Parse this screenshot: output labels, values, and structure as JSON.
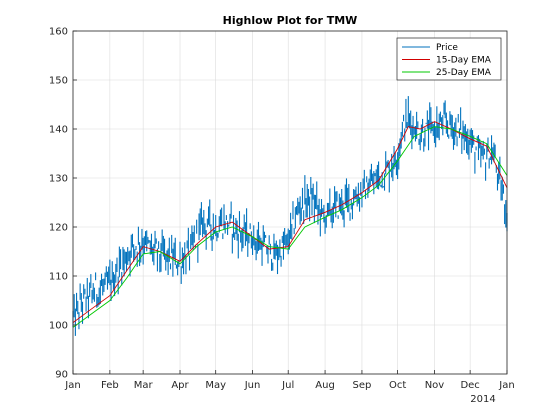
{
  "chart_data": {
    "type": "line",
    "title": "Highlow Plot for TMW",
    "xlabel": "",
    "ylabel": "",
    "xlim": [
      "2013-01-01",
      "2014-01-01"
    ],
    "ylim": [
      90,
      160
    ],
    "yticks": [
      90,
      100,
      110,
      120,
      130,
      140,
      150,
      160
    ],
    "xticks": [
      {
        "date": "2013-01-01",
        "label": "Jan"
      },
      {
        "date": "2013-02-01",
        "label": "Feb"
      },
      {
        "date": "2013-03-01",
        "label": "Mar"
      },
      {
        "date": "2013-04-01",
        "label": "Apr"
      },
      {
        "date": "2013-05-01",
        "label": "May"
      },
      {
        "date": "2013-06-01",
        "label": "Jun"
      },
      {
        "date": "2013-07-01",
        "label": "Jul"
      },
      {
        "date": "2013-08-01",
        "label": "Aug"
      },
      {
        "date": "2013-09-01",
        "label": "Sep"
      },
      {
        "date": "2013-10-01",
        "label": "Oct"
      },
      {
        "date": "2013-11-01",
        "label": "Nov"
      },
      {
        "date": "2013-12-01",
        "label": "Dec"
      },
      {
        "date": "2014-01-01",
        "label": "Jan"
      }
    ],
    "year_label": "2014",
    "grid": true,
    "legend_position": "top-right",
    "series": [
      {
        "name": "Price",
        "color": "#0072bd",
        "style": "highlow",
        "points": [
          {
            "x": "2013-01-01",
            "y": 101
          },
          {
            "x": "2013-01-10",
            "y": 105
          },
          {
            "x": "2013-01-20",
            "y": 107
          },
          {
            "x": "2013-01-31",
            "y": 108
          },
          {
            "x": "2013-02-10",
            "y": 112
          },
          {
            "x": "2013-02-20",
            "y": 116
          },
          {
            "x": "2013-03-01",
            "y": 117
          },
          {
            "x": "2013-03-10",
            "y": 115
          },
          {
            "x": "2013-03-20",
            "y": 114
          },
          {
            "x": "2013-03-31",
            "y": 113
          },
          {
            "x": "2013-04-10",
            "y": 115
          },
          {
            "x": "2013-04-20",
            "y": 121
          },
          {
            "x": "2013-05-01",
            "y": 120
          },
          {
            "x": "2013-05-10",
            "y": 121
          },
          {
            "x": "2013-05-20",
            "y": 119
          },
          {
            "x": "2013-05-31",
            "y": 118
          },
          {
            "x": "2013-06-10",
            "y": 116
          },
          {
            "x": "2013-06-20",
            "y": 114
          },
          {
            "x": "2013-07-01",
            "y": 117
          },
          {
            "x": "2013-07-10",
            "y": 124
          },
          {
            "x": "2013-07-20",
            "y": 126
          },
          {
            "x": "2013-07-31",
            "y": 122
          },
          {
            "x": "2013-08-10",
            "y": 124
          },
          {
            "x": "2013-08-20",
            "y": 125
          },
          {
            "x": "2013-08-31",
            "y": 127
          },
          {
            "x": "2013-09-10",
            "y": 129
          },
          {
            "x": "2013-09-20",
            "y": 131
          },
          {
            "x": "2013-09-30",
            "y": 134
          },
          {
            "x": "2013-10-05",
            "y": 140
          },
          {
            "x": "2013-10-10",
            "y": 142
          },
          {
            "x": "2013-10-20",
            "y": 139
          },
          {
            "x": "2013-10-31",
            "y": 140
          },
          {
            "x": "2013-11-10",
            "y": 141
          },
          {
            "x": "2013-11-20",
            "y": 140
          },
          {
            "x": "2013-11-30",
            "y": 138
          },
          {
            "x": "2013-12-10",
            "y": 134
          },
          {
            "x": "2013-12-20",
            "y": 135
          },
          {
            "x": "2013-12-25",
            "y": 130
          },
          {
            "x": "2014-01-01",
            "y": 123
          }
        ]
      },
      {
        "name": "15-Day EMA",
        "color": "#d10000",
        "style": "line",
        "points": [
          {
            "x": "2013-01-01",
            "y": 100.5
          },
          {
            "x": "2013-01-15",
            "y": 103
          },
          {
            "x": "2013-02-01",
            "y": 106
          },
          {
            "x": "2013-02-15",
            "y": 111
          },
          {
            "x": "2013-03-01",
            "y": 116
          },
          {
            "x": "2013-03-15",
            "y": 115
          },
          {
            "x": "2013-04-01",
            "y": 113
          },
          {
            "x": "2013-04-15",
            "y": 116.5
          },
          {
            "x": "2013-05-01",
            "y": 120
          },
          {
            "x": "2013-05-15",
            "y": 121
          },
          {
            "x": "2013-06-01",
            "y": 118
          },
          {
            "x": "2013-06-15",
            "y": 115.5
          },
          {
            "x": "2013-07-01",
            "y": 116
          },
          {
            "x": "2013-07-15",
            "y": 121.5
          },
          {
            "x": "2013-08-01",
            "y": 123
          },
          {
            "x": "2013-08-15",
            "y": 124.5
          },
          {
            "x": "2013-09-01",
            "y": 127
          },
          {
            "x": "2013-09-15",
            "y": 129.5
          },
          {
            "x": "2013-10-01",
            "y": 136
          },
          {
            "x": "2013-10-10",
            "y": 140.5
          },
          {
            "x": "2013-10-20",
            "y": 140
          },
          {
            "x": "2013-11-01",
            "y": 141.5
          },
          {
            "x": "2013-11-15",
            "y": 140
          },
          {
            "x": "2013-12-01",
            "y": 138
          },
          {
            "x": "2013-12-15",
            "y": 136.5
          },
          {
            "x": "2014-01-01",
            "y": 128
          }
        ]
      },
      {
        "name": "25-Day EMA",
        "color": "#00c800",
        "style": "line",
        "points": [
          {
            "x": "2013-01-01",
            "y": 99.5
          },
          {
            "x": "2013-01-15",
            "y": 102
          },
          {
            "x": "2013-02-01",
            "y": 105
          },
          {
            "x": "2013-02-15",
            "y": 109.5
          },
          {
            "x": "2013-03-01",
            "y": 114.5
          },
          {
            "x": "2013-03-15",
            "y": 115
          },
          {
            "x": "2013-04-01",
            "y": 112.5
          },
          {
            "x": "2013-04-15",
            "y": 116
          },
          {
            "x": "2013-05-01",
            "y": 119
          },
          {
            "x": "2013-05-15",
            "y": 120
          },
          {
            "x": "2013-06-01",
            "y": 118
          },
          {
            "x": "2013-06-15",
            "y": 116
          },
          {
            "x": "2013-07-01",
            "y": 115.5
          },
          {
            "x": "2013-07-15",
            "y": 120
          },
          {
            "x": "2013-08-01",
            "y": 122
          },
          {
            "x": "2013-08-15",
            "y": 123.5
          },
          {
            "x": "2013-09-01",
            "y": 126
          },
          {
            "x": "2013-09-15",
            "y": 128.5
          },
          {
            "x": "2013-10-01",
            "y": 133.5
          },
          {
            "x": "2013-10-15",
            "y": 138.5
          },
          {
            "x": "2013-11-01",
            "y": 140.5
          },
          {
            "x": "2013-11-15",
            "y": 140
          },
          {
            "x": "2013-12-01",
            "y": 138.5
          },
          {
            "x": "2013-12-15",
            "y": 137
          },
          {
            "x": "2014-01-01",
            "y": 130.5
          }
        ]
      }
    ]
  }
}
